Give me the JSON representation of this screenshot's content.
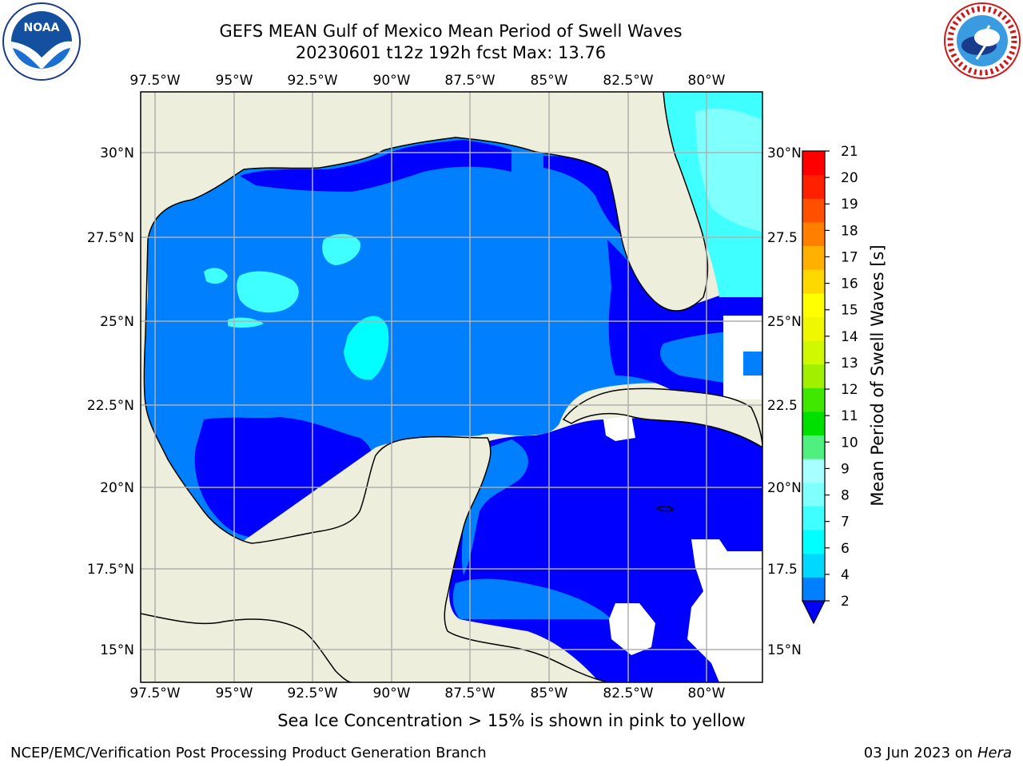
{
  "header": {
    "title_line1": "GEFS MEAN Gulf of Mexico Mean Period of Swell Waves",
    "title_line2": "20230601 t12z 192h fcst   Max: 13.76"
  },
  "logos": {
    "left_icon": "noaa-logo-icon",
    "right_icon": "nws-logo-icon",
    "noaa_text": "NOAA",
    "noaa_ring_text": "NATIONAL OCEANIC AND ATMOSPHERIC ADMINISTRATION",
    "noaa_ring_bottom": "U.S. DEPARTMENT OF COMMERCE",
    "nws_ring_text": "NATIONAL WEATHER SERVICE"
  },
  "map": {
    "lon_labels": [
      "97.5°W",
      "95°W",
      "92.5°W",
      "90°W",
      "87.5°W",
      "85°W",
      "82.5°W",
      "80°W"
    ],
    "lat_labels_left": [
      "30°N",
      "27.5°N",
      "25°N",
      "22.5°N",
      "20°N",
      "17.5°N",
      "15°N"
    ],
    "lat_labels_right": [
      "30°N",
      "27.5",
      "25°N",
      "22.5",
      "20°N",
      "17.5",
      "15°N"
    ],
    "colors": {
      "land": "#eeeedc",
      "blue_2": "#0080ff",
      "blue_dark": "#0000ff",
      "cyan": "#00ffff",
      "light_cyan": "#80ffff",
      "green": "#40e000"
    }
  },
  "colorbar": {
    "label": "Mean Period of Swell Waves [s]",
    "ticks": [
      "2",
      "4",
      "6",
      "7",
      "8",
      "9",
      "10",
      "11",
      "12",
      "13",
      "14",
      "15",
      "16",
      "17",
      "18",
      "19",
      "20",
      "21"
    ],
    "colors": [
      "#0080ff",
      "#00d8ff",
      "#00ffff",
      "#40ffff",
      "#80ffff",
      "#a8ffff",
      "#50f080",
      "#00e000",
      "#40e800",
      "#a0f000",
      "#d0f800",
      "#f0f800",
      "#ffff00",
      "#ffd800",
      "#ffb000",
      "#ff8000",
      "#ff5000",
      "#ff2000",
      "#ff0000"
    ],
    "extend_color": "#0000ff"
  },
  "footer": {
    "note": "Sea Ice Concentration > 15% is shown in pink to yellow",
    "left": "NCEP/EMC/Verification Post Processing Product Generation Branch",
    "right_date": "03 Jun 2023 on",
    "right_host": "Hera"
  }
}
